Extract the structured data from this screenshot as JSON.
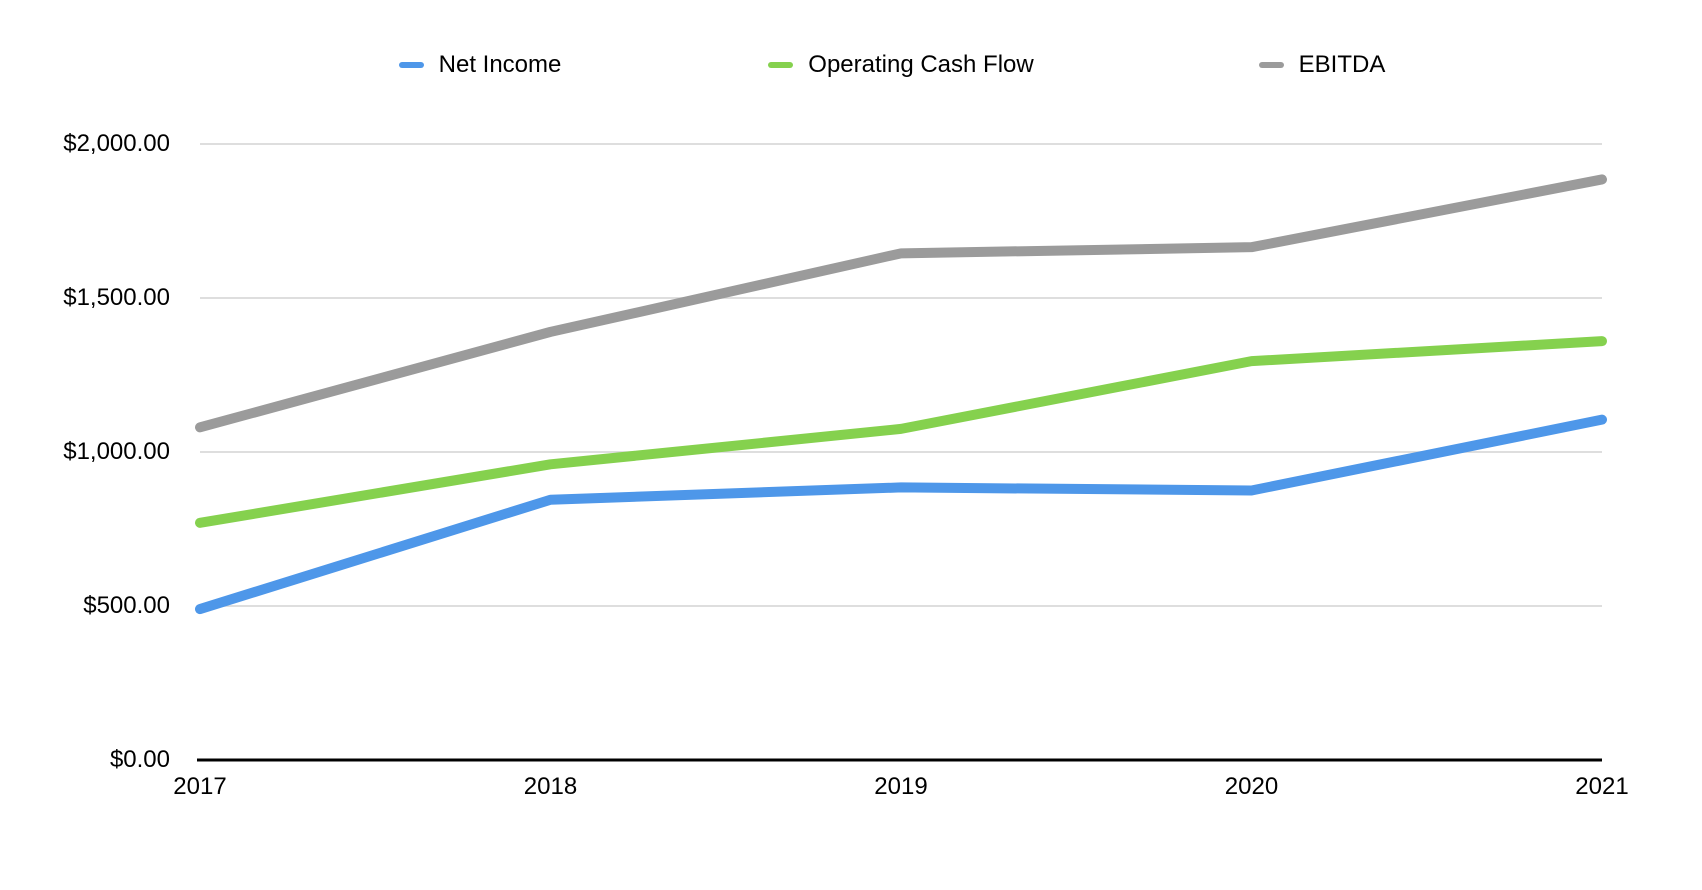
{
  "page": {
    "background": "#FFFFFF"
  },
  "chart_data": {
    "type": "line",
    "title": "",
    "xlabel": "",
    "ylabel": "",
    "x": [
      "2017",
      "2018",
      "2019",
      "2020",
      "2021"
    ],
    "series": [
      {
        "name": "Net Income",
        "color": "#4E97E9",
        "values": [
          490,
          845,
          885,
          875,
          1105
        ]
      },
      {
        "name": "Operating Cash Flow",
        "color": "#85D14E",
        "values": [
          770,
          960,
          1075,
          1295,
          1360
        ]
      },
      {
        "name": "EBITDA",
        "color": "#9B9B9B",
        "values": [
          1080,
          1390,
          1645,
          1665,
          1885
        ]
      }
    ],
    "y_axis": {
      "min": 0,
      "max": 2000,
      "step": 500,
      "tick_labels": [
        "$0.00",
        "$500.00",
        "$1,000.00",
        "$1,500.00",
        "$2,000.00"
      ],
      "format": "currency"
    },
    "x_axis": {
      "tick_labels": [
        "2017",
        "2018",
        "2019",
        "2020",
        "2021"
      ]
    },
    "legend_position": "top",
    "grid": true,
    "style": {
      "line_width": 10,
      "gridline_color": "#D4D4D4",
      "axis_color": "#000000",
      "text_color": "#000000"
    }
  }
}
